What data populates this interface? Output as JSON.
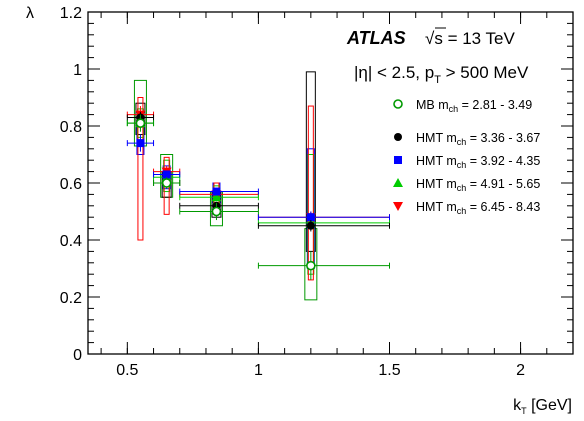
{
  "chart_data": {
    "type": "scatter",
    "xlabel": "k",
    "xlabel_sub": "T",
    "xlabel_unit": " [GeV]",
    "ylabel": "λ",
    "xlim": [
      0.35,
      2.2
    ],
    "ylim": [
      0,
      1.2
    ],
    "x_ticks": [
      0.5,
      1,
      1.5,
      2
    ],
    "x_tick_labels": [
      "0.5",
      "1",
      "1.5",
      "2"
    ],
    "y_ticks": [
      0,
      0.2,
      0.4,
      0.6,
      0.8,
      1,
      1.2
    ],
    "y_tick_labels": [
      "0",
      "0.2",
      "0.4",
      "0.6",
      "0.8",
      "1",
      "1.2"
    ],
    "grid": false,
    "legend_position": "right",
    "annotations": {
      "experiment": "ATLAS",
      "energy_prefix": "√s",
      "energy": " = 13 TeV",
      "cuts_eta": "|η| < 2.5, p",
      "cuts_pt_sub": "T",
      "cuts_pt": " > 500 MeV"
    },
    "series": [
      {
        "name": "MB",
        "legend_sub": "ch",
        "legend_range": " = 2.81 - 3.49",
        "legend_prefix": "MB m",
        "color": "#009900",
        "marker": "open-circle",
        "points": [
          {
            "x": 0.55,
            "y": 0.81,
            "xlo": 0.5,
            "xhi": 0.6,
            "stat": 0.03,
            "syslo": 0.73,
            "syshi": 0.96
          },
          {
            "x": 0.65,
            "y": 0.6,
            "xlo": 0.6,
            "xhi": 0.7,
            "stat": 0.02,
            "syslo": 0.55,
            "syshi": 0.7
          },
          {
            "x": 0.84,
            "y": 0.5,
            "xlo": 0.7,
            "xhi": 1.0,
            "stat": 0.03,
            "syslo": 0.45,
            "syshi": 0.57
          },
          {
            "x": 1.2,
            "y": 0.31,
            "xlo": 1.0,
            "xhi": 1.5,
            "stat": 0.05,
            "syslo": 0.19,
            "syshi": 0.44
          }
        ]
      },
      {
        "name": "HMT",
        "legend_prefix": "HMT m",
        "legend_sub": "ch",
        "legend_range": " = 3.36 - 3.67",
        "color": "#000000",
        "marker": "filled-circle",
        "points": [
          {
            "x": 0.55,
            "y": 0.83,
            "xlo": 0.5,
            "xhi": 0.6,
            "stat": 0.02,
            "syslo": 0.77,
            "syshi": 0.88
          },
          {
            "x": 0.65,
            "y": 0.6,
            "xlo": 0.6,
            "xhi": 0.7,
            "stat": 0.01,
            "syslo": 0.55,
            "syshi": 0.64
          },
          {
            "x": 0.84,
            "y": 0.52,
            "xlo": 0.7,
            "xhi": 1.0,
            "stat": 0.01,
            "syslo": 0.48,
            "syshi": 0.57
          },
          {
            "x": 1.2,
            "y": 0.45,
            "xlo": 1.0,
            "xhi": 1.5,
            "stat": 0.02,
            "syslo": 0.36,
            "syshi": 0.99
          }
        ]
      },
      {
        "name": "HMT",
        "legend_prefix": "HMT m",
        "legend_sub": "ch",
        "legend_range": " = 3.92 - 4.35",
        "color": "#0000ff",
        "marker": "filled-square",
        "points": [
          {
            "x": 0.55,
            "y": 0.74,
            "xlo": 0.5,
            "xhi": 0.6,
            "stat": 0.03,
            "syslo": 0.7,
            "syshi": 0.8
          },
          {
            "x": 0.65,
            "y": 0.63,
            "xlo": 0.6,
            "xhi": 0.7,
            "stat": 0.01,
            "syslo": 0.58,
            "syshi": 0.66
          },
          {
            "x": 0.84,
            "y": 0.57,
            "xlo": 0.7,
            "xhi": 1.0,
            "stat": 0.01,
            "syslo": 0.53,
            "syshi": 0.6
          },
          {
            "x": 1.2,
            "y": 0.48,
            "xlo": 1.0,
            "xhi": 1.5,
            "stat": 0.02,
            "syslo": 0.3,
            "syshi": 0.72
          }
        ]
      },
      {
        "name": "HMT",
        "legend_prefix": "HMT m",
        "legend_sub": "ch",
        "legend_range": " = 4.91 - 5.65",
        "color": "#00cc00",
        "marker": "filled-triangle-up",
        "points": [
          {
            "x": 0.55,
            "y": 0.81,
            "xlo": 0.5,
            "xhi": 0.6,
            "stat": 0.02,
            "syslo": 0.76,
            "syshi": 0.86
          },
          {
            "x": 0.65,
            "y": 0.62,
            "xlo": 0.6,
            "xhi": 0.7,
            "stat": 0.01,
            "syslo": 0.57,
            "syshi": 0.68
          },
          {
            "x": 0.84,
            "y": 0.55,
            "xlo": 0.7,
            "xhi": 1.0,
            "stat": 0.01,
            "syslo": 0.51,
            "syshi": 0.59
          },
          {
            "x": 1.2,
            "y": 0.46,
            "xlo": 1.0,
            "xhi": 1.5,
            "stat": 0.02,
            "syslo": 0.28,
            "syshi": 0.7
          }
        ]
      },
      {
        "name": "HMT",
        "legend_prefix": "HMT m",
        "legend_sub": "ch",
        "legend_range": " = 6.45 - 8.43",
        "color": "#ff0000",
        "marker": "filled-triangle-down",
        "points": [
          {
            "x": 0.55,
            "y": 0.84,
            "xlo": 0.5,
            "xhi": 0.6,
            "stat": 0.03,
            "syslo": 0.4,
            "syshi": 0.9
          },
          {
            "x": 0.65,
            "y": 0.64,
            "xlo": 0.6,
            "xhi": 0.7,
            "stat": 0.02,
            "syslo": 0.49,
            "syshi": 0.69
          },
          {
            "x": 0.84,
            "y": 0.56,
            "xlo": 0.7,
            "xhi": 1.0,
            "stat": 0.01,
            "syslo": 0.5,
            "syshi": 0.6
          },
          {
            "x": 1.2,
            "y": 0.48,
            "xlo": 1.0,
            "xhi": 1.5,
            "stat": 0.02,
            "syslo": 0.26,
            "syshi": 0.87
          }
        ]
      }
    ]
  }
}
